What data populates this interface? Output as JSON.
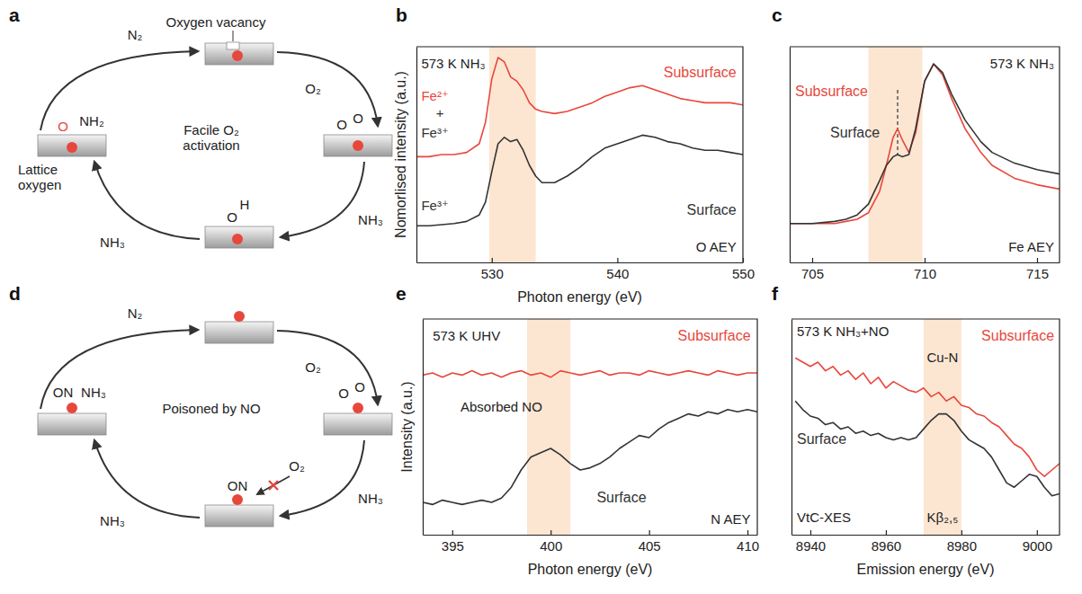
{
  "chart_data": [
    {
      "type": "line",
      "panel_label": "b",
      "x_label": "Photon energy (eV)",
      "y_label": "Nomorlised intensity (a.u.)",
      "xlim": [
        524,
        550
      ],
      "xticks": [
        530,
        540,
        550
      ],
      "ylim": [
        0,
        1
      ],
      "tick_labels": "x",
      "highlight": [
        529.8,
        533.5
      ],
      "x": [
        524,
        525,
        526,
        527,
        528,
        529,
        529.5,
        530,
        530.5,
        531,
        531.5,
        532,
        532.5,
        533,
        533.5,
        534,
        535,
        536,
        537,
        538,
        539,
        540,
        541,
        542,
        543,
        544,
        545,
        546,
        547,
        548,
        549,
        550
      ],
      "series": [
        {
          "name": "Subsurface",
          "color": "#e8473c",
          "values": [
            0.49,
            0.49,
            0.5,
            0.5,
            0.51,
            0.55,
            0.65,
            0.85,
            0.95,
            0.93,
            0.86,
            0.84,
            0.8,
            0.74,
            0.71,
            0.7,
            0.69,
            0.7,
            0.72,
            0.74,
            0.77,
            0.79,
            0.81,
            0.82,
            0.8,
            0.78,
            0.76,
            0.75,
            0.74,
            0.74,
            0.74,
            0.73
          ]
        },
        {
          "name": "Surface",
          "color": "#333333",
          "values": [
            0.17,
            0.17,
            0.175,
            0.18,
            0.19,
            0.22,
            0.28,
            0.42,
            0.55,
            0.58,
            0.56,
            0.57,
            0.52,
            0.45,
            0.4,
            0.37,
            0.37,
            0.4,
            0.44,
            0.49,
            0.53,
            0.55,
            0.57,
            0.59,
            0.58,
            0.56,
            0.55,
            0.53,
            0.52,
            0.52,
            0.51,
            0.5
          ]
        }
      ],
      "annotations": [
        {
          "text": "573 K NH₃",
          "color": "#222222"
        },
        {
          "text": "Fe²⁺",
          "color": "#e8473c"
        },
        {
          "text": "+",
          "color": "#333333"
        },
        {
          "text": "Fe³⁺",
          "color": "#333333"
        },
        {
          "text": "Fe³⁺",
          "color": "#333333"
        },
        {
          "text": "O AEY",
          "color": "#222222"
        }
      ]
    },
    {
      "type": "line",
      "panel_label": "c",
      "xlim": [
        704,
        716
      ],
      "xticks": [
        705,
        710,
        715
      ],
      "ylim": [
        0,
        1
      ],
      "tick_labels": "x",
      "highlight": [
        707.5,
        709.9
      ],
      "reference_line": 708.8,
      "x": [
        704,
        705,
        706,
        706.5,
        707,
        707.5,
        708,
        708.3,
        708.6,
        708.8,
        709,
        709.3,
        709.6,
        710,
        710.4,
        710.8,
        711.2,
        711.8,
        712.5,
        713,
        714,
        715,
        716
      ],
      "series": [
        {
          "name": "Subsurface",
          "color": "#e8473c",
          "values": [
            0.18,
            0.18,
            0.18,
            0.19,
            0.2,
            0.23,
            0.33,
            0.45,
            0.58,
            0.62,
            0.57,
            0.51,
            0.6,
            0.84,
            0.92,
            0.87,
            0.76,
            0.62,
            0.51,
            0.45,
            0.39,
            0.36,
            0.34
          ]
        },
        {
          "name": "Surface",
          "color": "#333333",
          "values": [
            0.18,
            0.18,
            0.19,
            0.2,
            0.22,
            0.27,
            0.38,
            0.45,
            0.49,
            0.5,
            0.49,
            0.5,
            0.62,
            0.84,
            0.92,
            0.88,
            0.78,
            0.66,
            0.56,
            0.51,
            0.46,
            0.43,
            0.41
          ]
        }
      ],
      "annotations": [
        {
          "text": "573 K NH₃",
          "color": "#222222"
        },
        {
          "text": "Fe AEY",
          "color": "#222222"
        }
      ]
    },
    {
      "type": "line",
      "panel_label": "e",
      "x_label": "Photon energy (eV)",
      "y_label": "Intensity (a.u.)",
      "xlim": [
        393.5,
        410.5
      ],
      "xticks": [
        395,
        400,
        405,
        410
      ],
      "ylim": [
        0,
        1
      ],
      "tick_labels": "x",
      "highlight": [
        398.8,
        401
      ],
      "x": [
        393.5,
        394,
        394.5,
        395,
        395.5,
        396,
        396.5,
        397,
        397.5,
        398,
        398.5,
        399,
        399.5,
        400,
        400.5,
        401,
        401.5,
        402,
        402.5,
        403,
        403.5,
        404,
        404.5,
        405,
        405.5,
        406,
        406.5,
        407,
        407.5,
        408,
        408.5,
        409,
        409.5,
        410,
        410.5
      ],
      "series": [
        {
          "name": "Subsurface",
          "color": "#e8473c",
          "values": [
            0.74,
            0.75,
            0.73,
            0.75,
            0.74,
            0.76,
            0.74,
            0.75,
            0.73,
            0.75,
            0.76,
            0.74,
            0.75,
            0.73,
            0.76,
            0.75,
            0.74,
            0.75,
            0.76,
            0.74,
            0.75,
            0.75,
            0.74,
            0.76,
            0.75,
            0.74,
            0.75,
            0.76,
            0.75,
            0.74,
            0.76,
            0.75,
            0.74,
            0.75,
            0.75
          ]
        },
        {
          "name": "Surface",
          "color": "#333333",
          "values": [
            0.15,
            0.14,
            0.16,
            0.15,
            0.14,
            0.15,
            0.16,
            0.15,
            0.17,
            0.22,
            0.3,
            0.36,
            0.38,
            0.4,
            0.37,
            0.33,
            0.3,
            0.31,
            0.33,
            0.36,
            0.4,
            0.43,
            0.46,
            0.45,
            0.49,
            0.52,
            0.54,
            0.56,
            0.55,
            0.57,
            0.56,
            0.58,
            0.57,
            0.58,
            0.57
          ]
        }
      ],
      "annotations": [
        {
          "text": "573 K UHV",
          "color": "#222222"
        },
        {
          "text": "Absorbed NO",
          "color": "#222222"
        },
        {
          "text": "N AEY",
          "color": "#222222"
        }
      ]
    },
    {
      "type": "line",
      "panel_label": "f",
      "x_label": "Emission energy (eV)",
      "xlim": [
        8935,
        9006
      ],
      "xticks": [
        8940,
        8960,
        8980,
        9000
      ],
      "ylim": [
        0,
        1
      ],
      "tick_labels": "x",
      "highlight": [
        8970,
        8980
      ],
      "x": [
        8936,
        8938,
        8940,
        8942,
        8944,
        8946,
        8948,
        8950,
        8952,
        8954,
        8956,
        8958,
        8960,
        8962,
        8964,
        8966,
        8968,
        8970,
        8972,
        8974,
        8976,
        8978,
        8980,
        8982,
        8984,
        8986,
        8988,
        8990,
        8992,
        8994,
        8996,
        8998,
        9000,
        9002,
        9004,
        9006
      ],
      "series": [
        {
          "name": "Subsurface",
          "color": "#e8473c",
          "values": [
            0.82,
            0.8,
            0.78,
            0.8,
            0.76,
            0.78,
            0.74,
            0.76,
            0.72,
            0.75,
            0.7,
            0.73,
            0.68,
            0.71,
            0.69,
            0.67,
            0.66,
            0.68,
            0.64,
            0.66,
            0.62,
            0.64,
            0.6,
            0.59,
            0.56,
            0.55,
            0.52,
            0.5,
            0.46,
            0.42,
            0.4,
            0.36,
            0.3,
            0.27,
            0.3,
            0.33
          ]
        },
        {
          "name": "Surface",
          "color": "#333333",
          "values": [
            0.62,
            0.58,
            0.55,
            0.54,
            0.51,
            0.52,
            0.49,
            0.5,
            0.47,
            0.48,
            0.46,
            0.47,
            0.45,
            0.44,
            0.45,
            0.44,
            0.45,
            0.49,
            0.53,
            0.56,
            0.56,
            0.53,
            0.48,
            0.44,
            0.42,
            0.4,
            0.36,
            0.3,
            0.24,
            0.22,
            0.25,
            0.28,
            0.27,
            0.22,
            0.18,
            0.19
          ]
        }
      ],
      "annotations": [
        {
          "text": "573 K NH₃+NO",
          "color": "#222222"
        },
        {
          "text": "Cu-N",
          "color": "#222222"
        },
        {
          "text": "VtC-XES",
          "color": "#222222"
        },
        {
          "text": "Kβ₂,₅",
          "color": "#222222"
        }
      ]
    }
  ],
  "diagrams": [
    {
      "panel_label": "a",
      "center_label": "Facile O₂ activation",
      "arrow_labels": [
        "N₂",
        "O₂",
        "NH₃",
        "NH₃"
      ],
      "notes": [
        "Oxygen vacancy",
        "Lattice oxygen"
      ],
      "species": [
        {
          "text": "O",
          "color": "#e8473c"
        },
        {
          "text": "NH₂",
          "color": "#222222"
        },
        {
          "text": "O",
          "color": "#222222"
        },
        {
          "text": "O",
          "color": "#222222"
        },
        {
          "text": "O",
          "color": "#222222"
        },
        {
          "text": "H",
          "color": "#222222"
        }
      ]
    },
    {
      "panel_label": "d",
      "center_label": "Poisoned by NO",
      "arrow_labels": [
        "N₂",
        "O₂",
        "NH₃",
        "NH₃"
      ],
      "blocked_label": "O₂",
      "species": [
        {
          "text": "ON",
          "color": "#222222"
        },
        {
          "text": "NH₃",
          "color": "#222222"
        },
        {
          "text": "O",
          "color": "#222222"
        },
        {
          "text": "O",
          "color": "#222222"
        },
        {
          "text": "ON",
          "color": "#222222"
        }
      ]
    }
  ]
}
